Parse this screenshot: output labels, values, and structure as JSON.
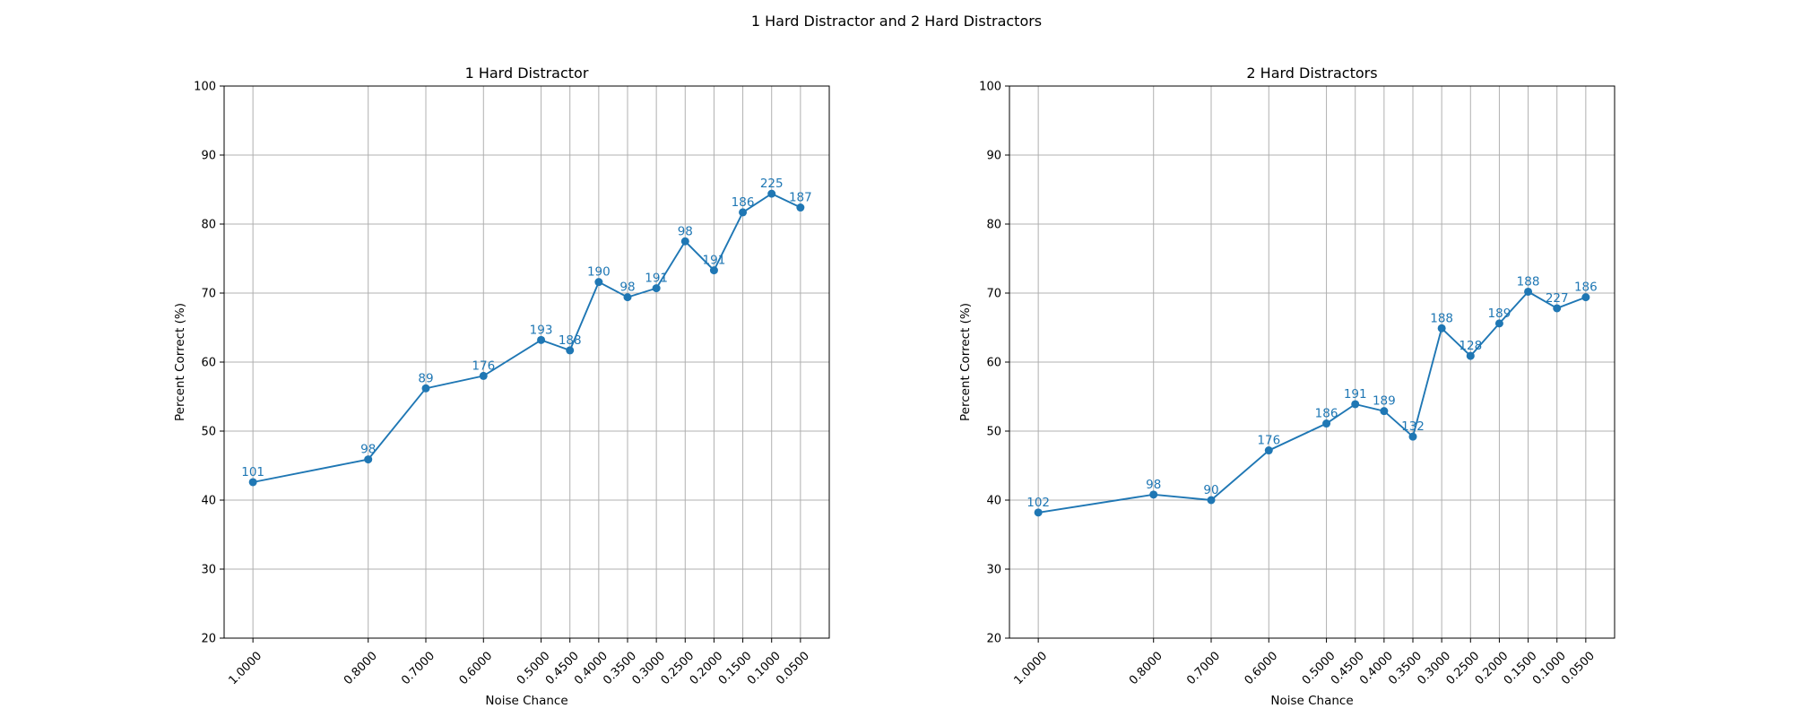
{
  "figure_title": "1 Hard Distractor and 2 Hard Distractors",
  "colors": {
    "series": "#1f77b4",
    "grid": "#b0b0b0",
    "axis": "#000000"
  },
  "chart_data": [
    {
      "type": "line",
      "title": "1 Hard Distractor",
      "xlabel": "Noise Chance",
      "ylabel": "Percent Correct (%)",
      "xlim": [
        1.05,
        0.0
      ],
      "ylim": [
        20,
        100
      ],
      "yticks": [
        "20",
        "30",
        "40",
        "50",
        "60",
        "70",
        "80",
        "90",
        "100"
      ],
      "xtick_labels": [
        "1.0000",
        "0.8000",
        "0.7000",
        "0.6000",
        "0.5000",
        "0.4500",
        "0.4000",
        "0.3500",
        "0.3000",
        "0.2500",
        "0.2000",
        "0.1500",
        "0.1000",
        "0.0500"
      ],
      "grid": true,
      "series": [
        {
          "marker": "circle",
          "x": [
            1.0,
            0.8,
            0.7,
            0.6,
            0.5,
            0.45,
            0.4,
            0.35,
            0.3,
            0.25,
            0.2,
            0.15,
            0.1,
            0.05
          ],
          "y": [
            42.6,
            45.9,
            56.2,
            58.0,
            63.2,
            61.7,
            71.6,
            69.4,
            70.7,
            77.5,
            73.3,
            81.7,
            84.4,
            82.4
          ],
          "labels": [
            "101",
            "98",
            "89",
            "176",
            "193",
            "188",
            "190",
            "98",
            "191",
            "98",
            "191",
            "186",
            "225",
            "187"
          ]
        }
      ]
    },
    {
      "type": "line",
      "title": "2 Hard Distractors",
      "xlabel": "Noise Chance",
      "ylabel": "Percent Correct (%)",
      "xlim": [
        1.05,
        0.0
      ],
      "ylim": [
        20,
        100
      ],
      "yticks": [
        "20",
        "30",
        "40",
        "50",
        "60",
        "70",
        "80",
        "90",
        "100"
      ],
      "xtick_labels": [
        "1.0000",
        "0.8000",
        "0.7000",
        "0.6000",
        "0.5000",
        "0.4500",
        "0.4000",
        "0.3500",
        "0.3000",
        "0.2500",
        "0.2000",
        "0.1500",
        "0.1000",
        "0.0500"
      ],
      "grid": true,
      "series": [
        {
          "marker": "circle",
          "x": [
            1.0,
            0.8,
            0.7,
            0.6,
            0.5,
            0.45,
            0.4,
            0.35,
            0.3,
            0.25,
            0.2,
            0.15,
            0.1,
            0.05
          ],
          "y": [
            38.2,
            40.8,
            40.0,
            47.2,
            51.1,
            53.9,
            52.9,
            49.2,
            64.9,
            60.9,
            65.6,
            70.2,
            67.8,
            69.4
          ],
          "labels": [
            "102",
            "98",
            "90",
            "176",
            "186",
            "191",
            "189",
            "132",
            "188",
            "128",
            "189",
            "188",
            "227",
            "186"
          ]
        }
      ]
    }
  ]
}
